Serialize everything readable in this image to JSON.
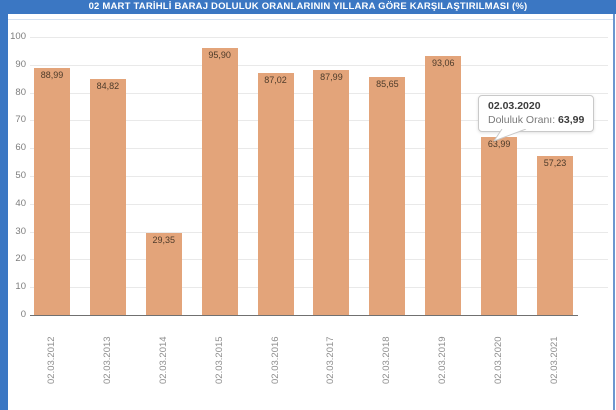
{
  "header": {
    "title": "02 MART TARİHLİ BARAJ DOLULUK ORANLARININ YILLARA GÖRE KARŞILAŞTIRILMASI (%)"
  },
  "chart_data": {
    "type": "bar",
    "title": "02 MART TARİHLİ BARAJ DOLULUK ORANLARININ YILLARA GÖRE KARŞILAŞTIRILMASI (%)",
    "categories": [
      "02.03.2012",
      "02.03.2013",
      "02.03.2014",
      "02.03.2015",
      "02.03.2016",
      "02.03.2017",
      "02.03.2018",
      "02.03.2019",
      "02.03.2020",
      "02.03.2021"
    ],
    "values": [
      88.99,
      84.82,
      29.35,
      95.9,
      87.02,
      87.99,
      85.65,
      93.06,
      63.99,
      57.23
    ],
    "value_labels": [
      "88,99",
      "84,82",
      "29,35",
      "95,90",
      "87,02",
      "87,99",
      "85,65",
      "93,06",
      "63,99",
      "57,23"
    ],
    "xlabel": "",
    "ylabel": "",
    "ylim": [
      0,
      100
    ],
    "yticks": [
      0,
      10,
      20,
      30,
      40,
      50,
      60,
      70,
      80,
      90,
      100
    ],
    "grid": true,
    "legend": "none",
    "bar_color": "#e3a47a"
  },
  "tooltip": {
    "date": "02.03.2020",
    "label": "Doluluk Oranı:",
    "value": "63,99"
  },
  "colors": {
    "accent_blue": "#3b77c3",
    "panel_border_light": "#d7e2f0",
    "right_border": "#6c97cf",
    "bar": "#e3a47a",
    "grid": "#e9e9e9",
    "axis": "#707070",
    "y_tick_text": "#7d7d7d",
    "x_label_text": "#8f8f8f",
    "bar_label_text": "#4d3b2a",
    "tooltip_border": "#c9c9c9",
    "tooltip_text": "#3d3d3d",
    "tooltip_muted": "#7a7a7a"
  }
}
